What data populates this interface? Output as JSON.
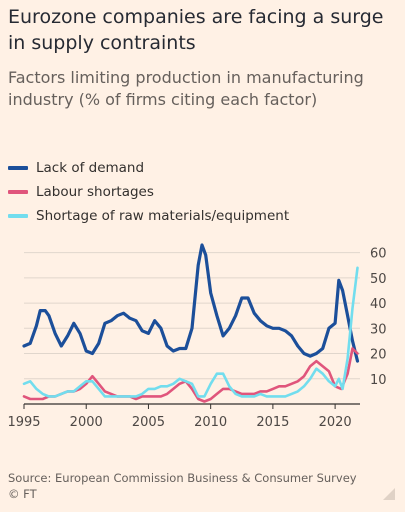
{
  "title": "Eurozone companies are facing a surge in supply contraints",
  "subtitle": "Factors limiting production in manufacturing industry (% of firms citing each factor)",
  "source": "Source: European Commission Business & Consumer Survey",
  "credit": "© FT",
  "colors": {
    "background": "#fff1e5",
    "grid": "#e0d6cc",
    "axis": "#33302e",
    "lack_of_demand": "#1c4f9a",
    "labour_shortages": "#e0557c",
    "raw_materials": "#72ddee"
  },
  "chart_data": {
    "type": "line",
    "title": "Eurozone companies are facing a surge in supply contraints",
    "subtitle": "Factors limiting production in manufacturing industry (% of firms citing each factor)",
    "xlabel": "",
    "ylabel": "",
    "xlim": [
      1995,
      2022
    ],
    "ylim": [
      0,
      65
    ],
    "x_ticks": [
      1995,
      2000,
      2005,
      2010,
      2015,
      2020
    ],
    "y_ticks": [
      10,
      20,
      30,
      40,
      50,
      60
    ],
    "y_axis_side": "right",
    "grid": true,
    "legend": "top-left",
    "series": [
      {
        "name": "Lack of demand",
        "color_key": "lack_of_demand",
        "x": [
          1995,
          1995.5,
          1996,
          1996.3,
          1996.7,
          1997,
          1997.5,
          1998,
          1998.5,
          1999,
          1999.5,
          2000,
          2000.5,
          2001,
          2001.5,
          2002,
          2002.5,
          2003,
          2003.5,
          2004,
          2004.5,
          2005,
          2005.5,
          2006,
          2006.5,
          2007,
          2007.5,
          2008,
          2008.5,
          2009,
          2009.3,
          2009.6,
          2010,
          2010.5,
          2011,
          2011.5,
          2012,
          2012.5,
          2013,
          2013.5,
          2014,
          2014.5,
          2015,
          2015.5,
          2016,
          2016.5,
          2017,
          2017.5,
          2018,
          2018.5,
          2019,
          2019.5,
          2020,
          2020.3,
          2020.6,
          2021,
          2021.4,
          2021.8
        ],
        "values": [
          23,
          24,
          31,
          37,
          37,
          35,
          28,
          23,
          27,
          32,
          28,
          21,
          20,
          24,
          32,
          33,
          35,
          36,
          34,
          33,
          29,
          28,
          33,
          30,
          23,
          21,
          22,
          22,
          30,
          55,
          63,
          59,
          44,
          35,
          27,
          30,
          35,
          42,
          42,
          36,
          33,
          31,
          30,
          30,
          29,
          27,
          23,
          20,
          19,
          20,
          22,
          30,
          32,
          49,
          45,
          35,
          25,
          17
        ]
      },
      {
        "name": "Labour shortages",
        "color_key": "labour_shortages",
        "x": [
          1995,
          1995.5,
          1996,
          1996.5,
          1997,
          1997.5,
          1998,
          1998.5,
          1999,
          1999.5,
          2000,
          2000.5,
          2001,
          2001.5,
          2002,
          2002.5,
          2003,
          2003.5,
          2004,
          2004.5,
          2005,
          2005.5,
          2006,
          2006.5,
          2007,
          2007.5,
          2008,
          2008.5,
          2009,
          2009.5,
          2010,
          2010.5,
          2011,
          2011.5,
          2012,
          2012.5,
          2013,
          2013.5,
          2014,
          2014.5,
          2015,
          2015.5,
          2016,
          2016.5,
          2017,
          2017.5,
          2018,
          2018.5,
          2019,
          2019.5,
          2020,
          2020.5,
          2021,
          2021.4,
          2021.8
        ],
        "values": [
          3,
          2,
          2,
          2,
          3,
          3,
          4,
          5,
          5,
          6,
          8,
          11,
          8,
          5,
          4,
          3,
          3,
          3,
          2,
          3,
          3,
          3,
          3,
          4,
          6,
          8,
          9,
          6,
          2,
          1,
          2,
          4,
          6,
          6,
          5,
          4,
          4,
          4,
          5,
          5,
          6,
          7,
          7,
          8,
          9,
          11,
          15,
          17,
          15,
          13,
          7,
          6,
          12,
          22,
          20
        ]
      },
      {
        "name": "Shortage of raw materials/equipment",
        "color_key": "raw_materials",
        "x": [
          1995,
          1995.5,
          1996,
          1996.5,
          1997,
          1997.5,
          1998,
          1998.5,
          1999,
          1999.5,
          2000,
          2000.5,
          2001,
          2001.5,
          2002,
          2002.5,
          2003,
          2003.5,
          2004,
          2004.5,
          2005,
          2005.5,
          2006,
          2006.5,
          2007,
          2007.5,
          2008,
          2008.5,
          2009,
          2009.5,
          2010,
          2010.5,
          2011,
          2011.5,
          2012,
          2012.5,
          2013,
          2013.5,
          2014,
          2014.5,
          2015,
          2015.5,
          2016,
          2016.5,
          2017,
          2017.5,
          2018,
          2018.5,
          2019,
          2019.5,
          2020,
          2020.3,
          2020.6,
          2021,
          2021.4,
          2021.8
        ],
        "values": [
          8,
          9,
          6,
          4,
          3,
          3,
          4,
          5,
          5,
          7,
          9,
          9,
          6,
          3,
          3,
          3,
          3,
          3,
          3,
          4,
          6,
          6,
          7,
          7,
          8,
          10,
          9,
          8,
          3,
          3,
          8,
          12,
          12,
          7,
          4,
          3,
          3,
          3,
          4,
          3,
          3,
          3,
          3,
          4,
          5,
          7,
          10,
          14,
          12,
          9,
          7,
          10,
          6,
          18,
          38,
          54
        ]
      }
    ]
  }
}
